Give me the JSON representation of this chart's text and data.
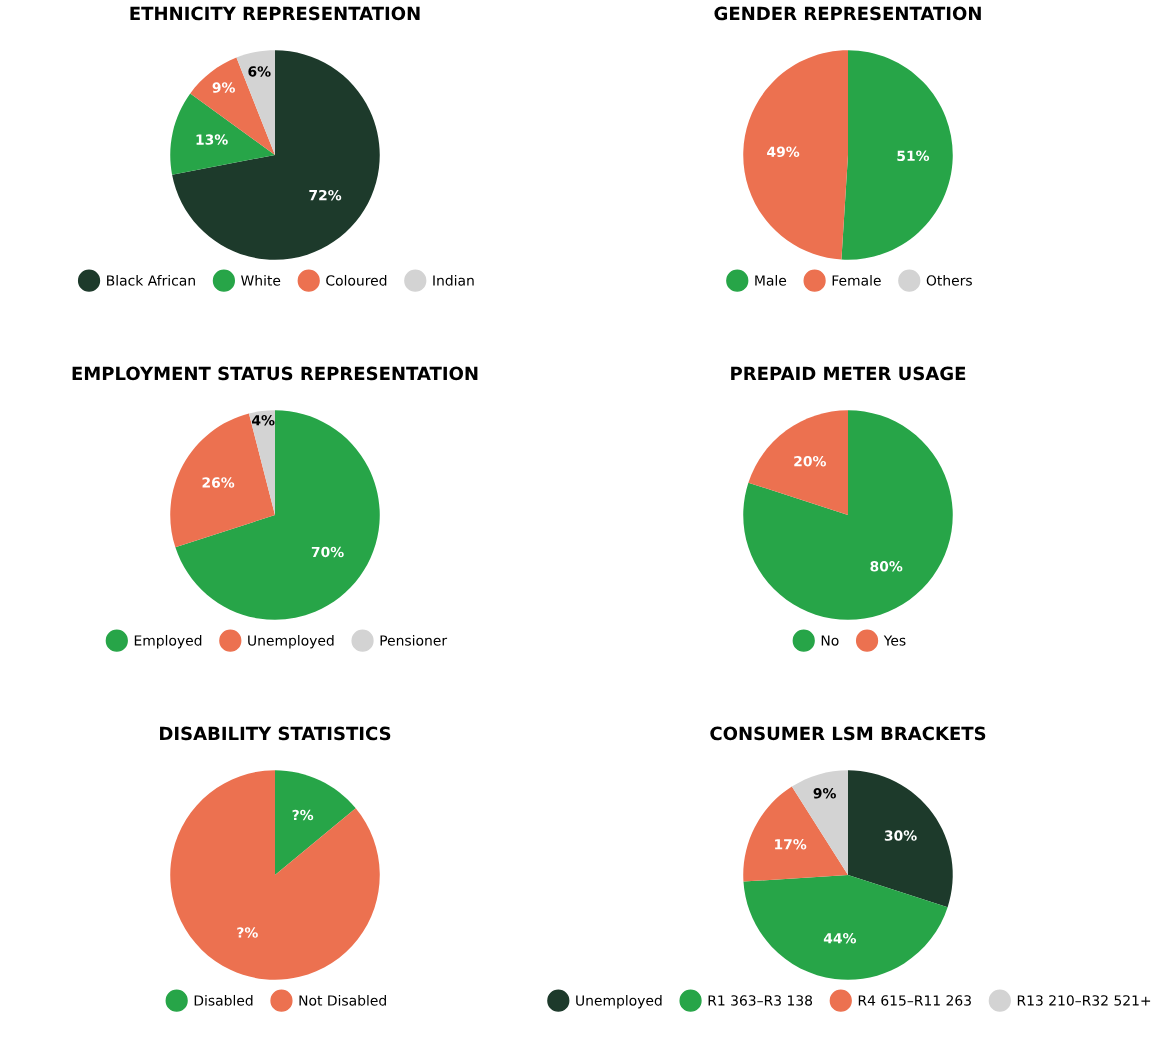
{
  "chart_data": [
    {
      "type": "pie",
      "title": "ETHNICITY REPRESENTATION",
      "categories": [
        "Black African",
        "White",
        "Coloured",
        "Indian"
      ],
      "values": [
        72,
        13,
        9,
        6
      ],
      "colors": [
        "#1d3a2b",
        "#27a548",
        "#ec7150",
        "#d3d3d3"
      ],
      "value_labels": [
        "72%",
        "13%",
        "9%",
        "6%"
      ],
      "legend": "bottom"
    },
    {
      "type": "pie",
      "title": "GENDER REPRESENTATION",
      "categories": [
        "Male",
        "Female",
        "Others"
      ],
      "values": [
        51,
        49,
        0
      ],
      "colors": [
        "#27a548",
        "#ec7150",
        "#d3d3d3"
      ],
      "value_labels": [
        "51%",
        "49%",
        null
      ],
      "legend": "bottom"
    },
    {
      "type": "pie",
      "title": "EMPLOYMENT STATUS REPRESENTATION",
      "categories": [
        "Employed",
        "Unemployed",
        "Pensioner"
      ],
      "values": [
        70,
        26,
        4
      ],
      "colors": [
        "#27a548",
        "#ec7150",
        "#d3d3d3"
      ],
      "value_labels": [
        "70%",
        "26%",
        "4%"
      ],
      "legend": "bottom"
    },
    {
      "type": "pie",
      "title": "PREPAID METER USAGE",
      "categories": [
        "No",
        "Yes"
      ],
      "values": [
        80,
        20
      ],
      "colors": [
        "#27a548",
        "#ec7150"
      ],
      "value_labels": [
        "80%",
        "20%"
      ],
      "legend": "bottom"
    },
    {
      "type": "pie",
      "title": "DISABILITY STATISTICS",
      "categories": [
        "Disabled",
        "Not Disabled"
      ],
      "values": [
        14,
        86
      ],
      "colors": [
        "#27a548",
        "#ec7150"
      ],
      "value_labels": [
        "?%",
        "?%"
      ],
      "legend": "bottom"
    },
    {
      "type": "pie",
      "title": "CONSUMER LSM BRACKETS",
      "categories": [
        "Unemployed",
        "R1 363–R3 138",
        "R4 615–R11 263",
        "R13 210–R32 521+"
      ],
      "values": [
        30,
        44,
        17,
        9
      ],
      "colors": [
        "#1d3a2b",
        "#27a548",
        "#ec7150",
        "#d3d3d3"
      ],
      "value_labels": [
        "30%",
        "44%",
        "17%",
        "9%"
      ],
      "legend": "bottom"
    }
  ]
}
